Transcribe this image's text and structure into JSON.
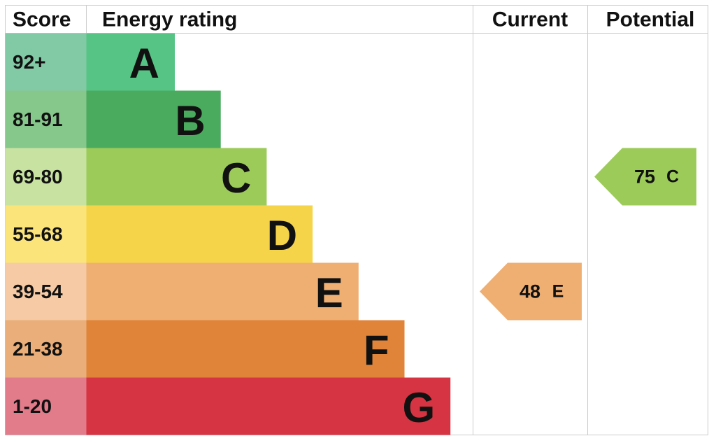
{
  "chart_data": {
    "type": "epc",
    "headers": {
      "score": "Score",
      "rating": "Energy rating",
      "current": "Current",
      "potential": "Potential"
    },
    "bands": [
      {
        "score": "92+",
        "letter": "A",
        "color": "#55c485",
        "score_color": "#82c9a6"
      },
      {
        "score": "81-91",
        "letter": "B",
        "color": "#4aab5e",
        "score_color": "#86c78b"
      },
      {
        "score": "69-80",
        "letter": "C",
        "color": "#9ccb5a",
        "score_color": "#c7e2a1"
      },
      {
        "score": "55-68",
        "letter": "D",
        "color": "#f6d44a",
        "score_color": "#fbe57b"
      },
      {
        "score": "39-54",
        "letter": "E",
        "color": "#efae72",
        "score_color": "#f5caa4"
      },
      {
        "score": "21-38",
        "letter": "F",
        "color": "#e0843a",
        "score_color": "#e9ae79"
      },
      {
        "score": "1-20",
        "letter": "G",
        "color": "#d63443",
        "score_color": "#e27c8b"
      }
    ],
    "current": {
      "value": 48,
      "letter": "E"
    },
    "potential": {
      "value": 75,
      "letter": "C"
    }
  }
}
